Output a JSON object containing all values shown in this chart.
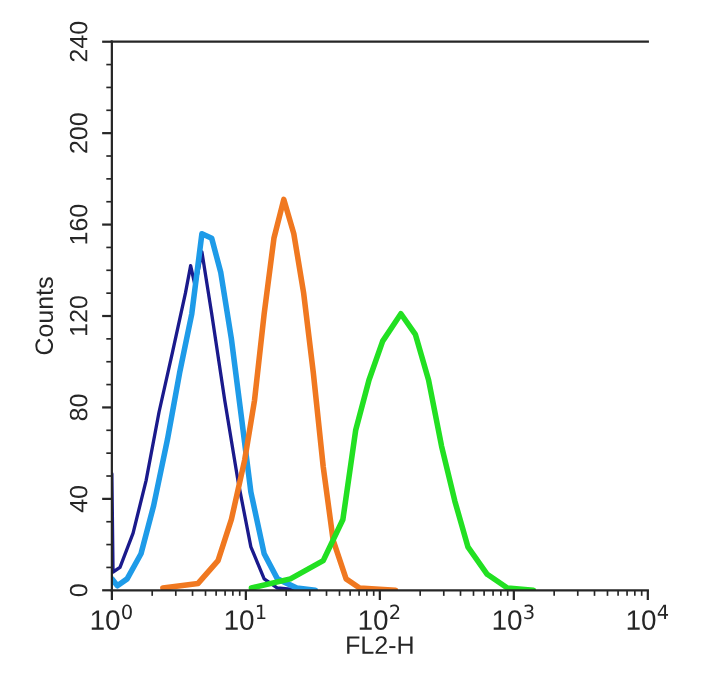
{
  "chart_data": {
    "type": "line",
    "xlabel": "FL2-H",
    "ylabel": "Counts",
    "log": "x",
    "xlim": [
      1,
      10000
    ],
    "ylim": [
      0,
      240
    ],
    "xticks": [
      {
        "value": 1,
        "label": "10$^{0}$"
      },
      {
        "value": 10,
        "label": "10$^{1}$"
      },
      {
        "value": 100,
        "label": "10$^{2}$"
      },
      {
        "value": 1000,
        "label": "10$^{3}$"
      },
      {
        "value": 10000,
        "label": "10$^{4}$"
      }
    ],
    "yticks": [
      0,
      40,
      80,
      120,
      160,
      200,
      240
    ],
    "grid": false,
    "legend": false,
    "marker": "none",
    "line_style": "solid",
    "series": [
      {
        "color": "#1a1a8c",
        "x": [
          1.0,
          1.02,
          1.15,
          1.44,
          1.8,
          2.25,
          2.83,
          3.54,
          3.87,
          4.19,
          4.7,
          5.56,
          6.96,
          8.73,
          10.9,
          13.7,
          17.2,
          27
        ],
        "values": [
          51,
          8,
          10,
          25,
          48,
          78,
          104,
          130,
          142,
          133,
          148,
          121,
          83,
          48,
          19,
          5,
          1,
          0
        ]
      },
      {
        "color": "#1e9be8",
        "x": [
          1.0,
          1.1,
          1.3,
          1.65,
          2.05,
          2.6,
          3.2,
          3.95,
          4.7,
          5.56,
          6.5,
          7.8,
          9.3,
          10.9,
          13.7,
          17.2,
          24,
          33
        ],
        "values": [
          5,
          2,
          5,
          16,
          37,
          66,
          95,
          121,
          156,
          154,
          139,
          110,
          75,
          43,
          16,
          5,
          1,
          0
        ]
      },
      {
        "color": "#f07820",
        "x": [
          2.4,
          4.4,
          6.2,
          7.8,
          9.8,
          11.6,
          13.7,
          16.2,
          19.2,
          22.8,
          27,
          31.9,
          37.8,
          44.8,
          56,
          70.6,
          131
        ],
        "values": [
          1,
          3,
          13,
          31,
          57,
          83,
          121,
          154,
          171,
          156,
          130,
          95,
          54,
          22,
          5,
          1,
          0
        ]
      },
      {
        "color": "#22e022",
        "x": [
          11,
          21.5,
          37.8,
          53,
          66,
          83,
          105,
          143.6,
          184,
          231,
          289,
          363,
          454,
          633,
          895,
          1400
        ],
        "values": [
          1,
          5,
          13,
          31,
          70,
          92,
          109,
          121,
          112,
          92,
          63,
          39,
          19,
          7,
          1,
          0
        ]
      }
    ]
  }
}
